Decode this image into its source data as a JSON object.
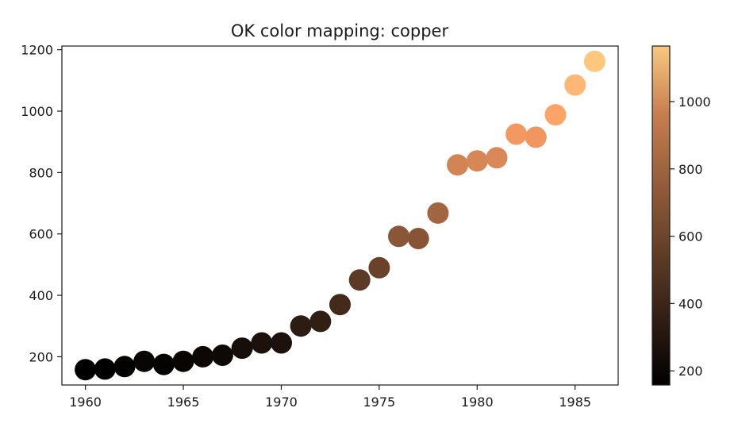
{
  "chart_data": {
    "type": "scatter",
    "title": "OK color mapping: copper",
    "xlabel": "",
    "ylabel": "",
    "xlim": [
      1958.8,
      1987.2
    ],
    "ylim": [
      108,
      1212
    ],
    "x_ticks": [
      1960,
      1965,
      1970,
      1975,
      1980,
      1985
    ],
    "y_ticks": [
      200,
      400,
      600,
      800,
      1000,
      1200
    ],
    "grid": false,
    "colormap": "copper",
    "color_range": [
      158,
      1165
    ],
    "colorbar_ticks": [
      200,
      400,
      600,
      800,
      1000
    ],
    "points": [
      {
        "x": 1960,
        "y": 158
      },
      {
        "x": 1961,
        "y": 160
      },
      {
        "x": 1962,
        "y": 168
      },
      {
        "x": 1963,
        "y": 185
      },
      {
        "x": 1964,
        "y": 175
      },
      {
        "x": 1965,
        "y": 185
      },
      {
        "x": 1966,
        "y": 200
      },
      {
        "x": 1967,
        "y": 205
      },
      {
        "x": 1968,
        "y": 228
      },
      {
        "x": 1969,
        "y": 245
      },
      {
        "x": 1970,
        "y": 245
      },
      {
        "x": 1971,
        "y": 300
      },
      {
        "x": 1972,
        "y": 315
      },
      {
        "x": 1973,
        "y": 370
      },
      {
        "x": 1974,
        "y": 450
      },
      {
        "x": 1975,
        "y": 490
      },
      {
        "x": 1976,
        "y": 592
      },
      {
        "x": 1977,
        "y": 585
      },
      {
        "x": 1978,
        "y": 668
      },
      {
        "x": 1979,
        "y": 825
      },
      {
        "x": 1980,
        "y": 838
      },
      {
        "x": 1981,
        "y": 848
      },
      {
        "x": 1982,
        "y": 925
      },
      {
        "x": 1983,
        "y": 915
      },
      {
        "x": 1984,
        "y": 988
      },
      {
        "x": 1985,
        "y": 1085
      },
      {
        "x": 1986,
        "y": 1162
      }
    ]
  }
}
